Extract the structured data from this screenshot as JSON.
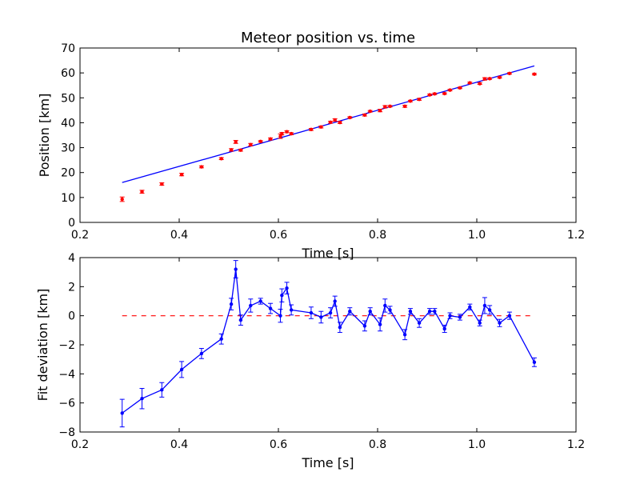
{
  "colors": {
    "fit_line": "#0000ff",
    "data_points": "#ff0000",
    "deviation": "#0000ff",
    "zero_line": "#ff0000",
    "axes": "#000000",
    "background": "#ffffff"
  },
  "chart_data": [
    {
      "type": "scatter",
      "title": "Meteor position vs. time",
      "xlabel": "Time [s]",
      "ylabel": "Position [km]",
      "xlim": [
        0.2,
        1.2
      ],
      "ylim": [
        0,
        70
      ],
      "xticks": [
        0.2,
        0.4,
        0.6,
        0.8,
        1.0,
        1.2
      ],
      "xtick_labels": [
        "0.2",
        "0.4",
        "0.6",
        "0.8",
        "1.0",
        "1.2"
      ],
      "yticks": [
        0,
        10,
        20,
        30,
        40,
        50,
        60,
        70
      ],
      "ytick_labels": [
        "0",
        "10",
        "20",
        "30",
        "40",
        "50",
        "60",
        "70"
      ],
      "grid": false,
      "points": {
        "x": [
          0.285,
          0.325,
          0.365,
          0.405,
          0.445,
          0.485,
          0.505,
          0.514,
          0.524,
          0.544,
          0.564,
          0.584,
          0.604,
          0.607,
          0.617,
          0.626,
          0.666,
          0.686,
          0.705,
          0.714,
          0.724,
          0.744,
          0.774,
          0.785,
          0.805,
          0.815,
          0.825,
          0.855,
          0.866,
          0.884,
          0.905,
          0.915,
          0.935,
          0.946,
          0.966,
          0.986,
          1.006,
          1.016,
          1.026,
          1.046,
          1.066,
          1.116
        ],
        "y": [
          9.3,
          12.3,
          15.4,
          19.2,
          22.3,
          25.6,
          29.1,
          32.3,
          29.0,
          31.2,
          32.5,
          33.5,
          34.6,
          35.6,
          36.4,
          35.6,
          37.3,
          38.3,
          40.2,
          41.1,
          40.1,
          42.1,
          43.1,
          44.6,
          44.9,
          46.4,
          46.6,
          46.6,
          48.7,
          49.4,
          51.2,
          51.6,
          51.7,
          53.1,
          54.0,
          56.0,
          55.7,
          57.6,
          57.7,
          58.2,
          59.8,
          59.5
        ],
        "yerr": [
          0.9,
          0.6,
          0.5,
          0.5,
          0.4,
          0.4,
          0.5,
          0.6,
          0.4,
          0.5,
          0.3,
          0.4,
          0.9,
          0.5,
          0.4,
          0.4,
          0.4,
          0.4,
          0.4,
          0.5,
          0.4,
          0.3,
          0.4,
          0.3,
          0.5,
          0.5,
          0.3,
          0.4,
          0.3,
          0.4,
          0.3,
          0.3,
          0.3,
          0.3,
          0.3,
          0.3,
          0.3,
          0.5,
          0.3,
          0.3,
          0.3,
          0.3
        ]
      },
      "fit_line": {
        "x": [
          0.285,
          1.116
        ],
        "y": [
          16.0,
          62.8
        ]
      }
    },
    {
      "type": "line",
      "title": "",
      "xlabel": "Time [s]",
      "ylabel": "Fit deviation [km]",
      "xlim": [
        0.2,
        1.2
      ],
      "ylim": [
        -8,
        4
      ],
      "xticks": [
        0.2,
        0.4,
        0.6,
        0.8,
        1.0,
        1.2
      ],
      "xtick_labels": [
        "0.2",
        "0.4",
        "0.6",
        "0.8",
        "1.0",
        "1.2"
      ],
      "yticks": [
        -8,
        -6,
        -4,
        -2,
        0,
        2,
        4
      ],
      "ytick_labels": [
        "−8",
        "−6",
        "−4",
        "−2",
        "0",
        "2",
        "4"
      ],
      "grid": false,
      "series": {
        "x": [
          0.285,
          0.325,
          0.365,
          0.405,
          0.445,
          0.485,
          0.505,
          0.514,
          0.524,
          0.544,
          0.564,
          0.584,
          0.604,
          0.607,
          0.617,
          0.626,
          0.666,
          0.686,
          0.705,
          0.714,
          0.724,
          0.744,
          0.774,
          0.785,
          0.805,
          0.815,
          0.825,
          0.855,
          0.866,
          0.884,
          0.905,
          0.915,
          0.935,
          0.946,
          0.966,
          0.986,
          1.006,
          1.016,
          1.026,
          1.046,
          1.066,
          1.116
        ],
        "y": [
          -6.7,
          -5.7,
          -5.1,
          -3.7,
          -2.6,
          -1.6,
          0.8,
          3.2,
          -0.3,
          0.7,
          1.0,
          0.5,
          0.0,
          1.4,
          1.9,
          0.4,
          0.2,
          -0.1,
          0.2,
          1.0,
          -0.8,
          0.3,
          -0.7,
          0.3,
          -0.6,
          0.7,
          0.4,
          -1.3,
          0.3,
          -0.5,
          0.3,
          0.3,
          -0.9,
          0.0,
          -0.1,
          0.6,
          -0.5,
          0.7,
          0.4,
          -0.5,
          0.0,
          -3.2
        ],
        "yerr": [
          0.95,
          0.7,
          0.5,
          0.55,
          0.35,
          0.35,
          0.4,
          0.6,
          0.35,
          0.45,
          0.2,
          0.35,
          0.45,
          0.45,
          0.4,
          0.35,
          0.4,
          0.4,
          0.35,
          0.35,
          0.35,
          0.25,
          0.35,
          0.25,
          0.45,
          0.45,
          0.25,
          0.35,
          0.2,
          0.3,
          0.2,
          0.2,
          0.25,
          0.2,
          0.2,
          0.2,
          0.2,
          0.55,
          0.3,
          0.25,
          0.25,
          0.3
        ]
      },
      "reference_line": {
        "y": 0,
        "x": [
          0.285,
          1.116
        ],
        "style": "dashed"
      }
    }
  ]
}
